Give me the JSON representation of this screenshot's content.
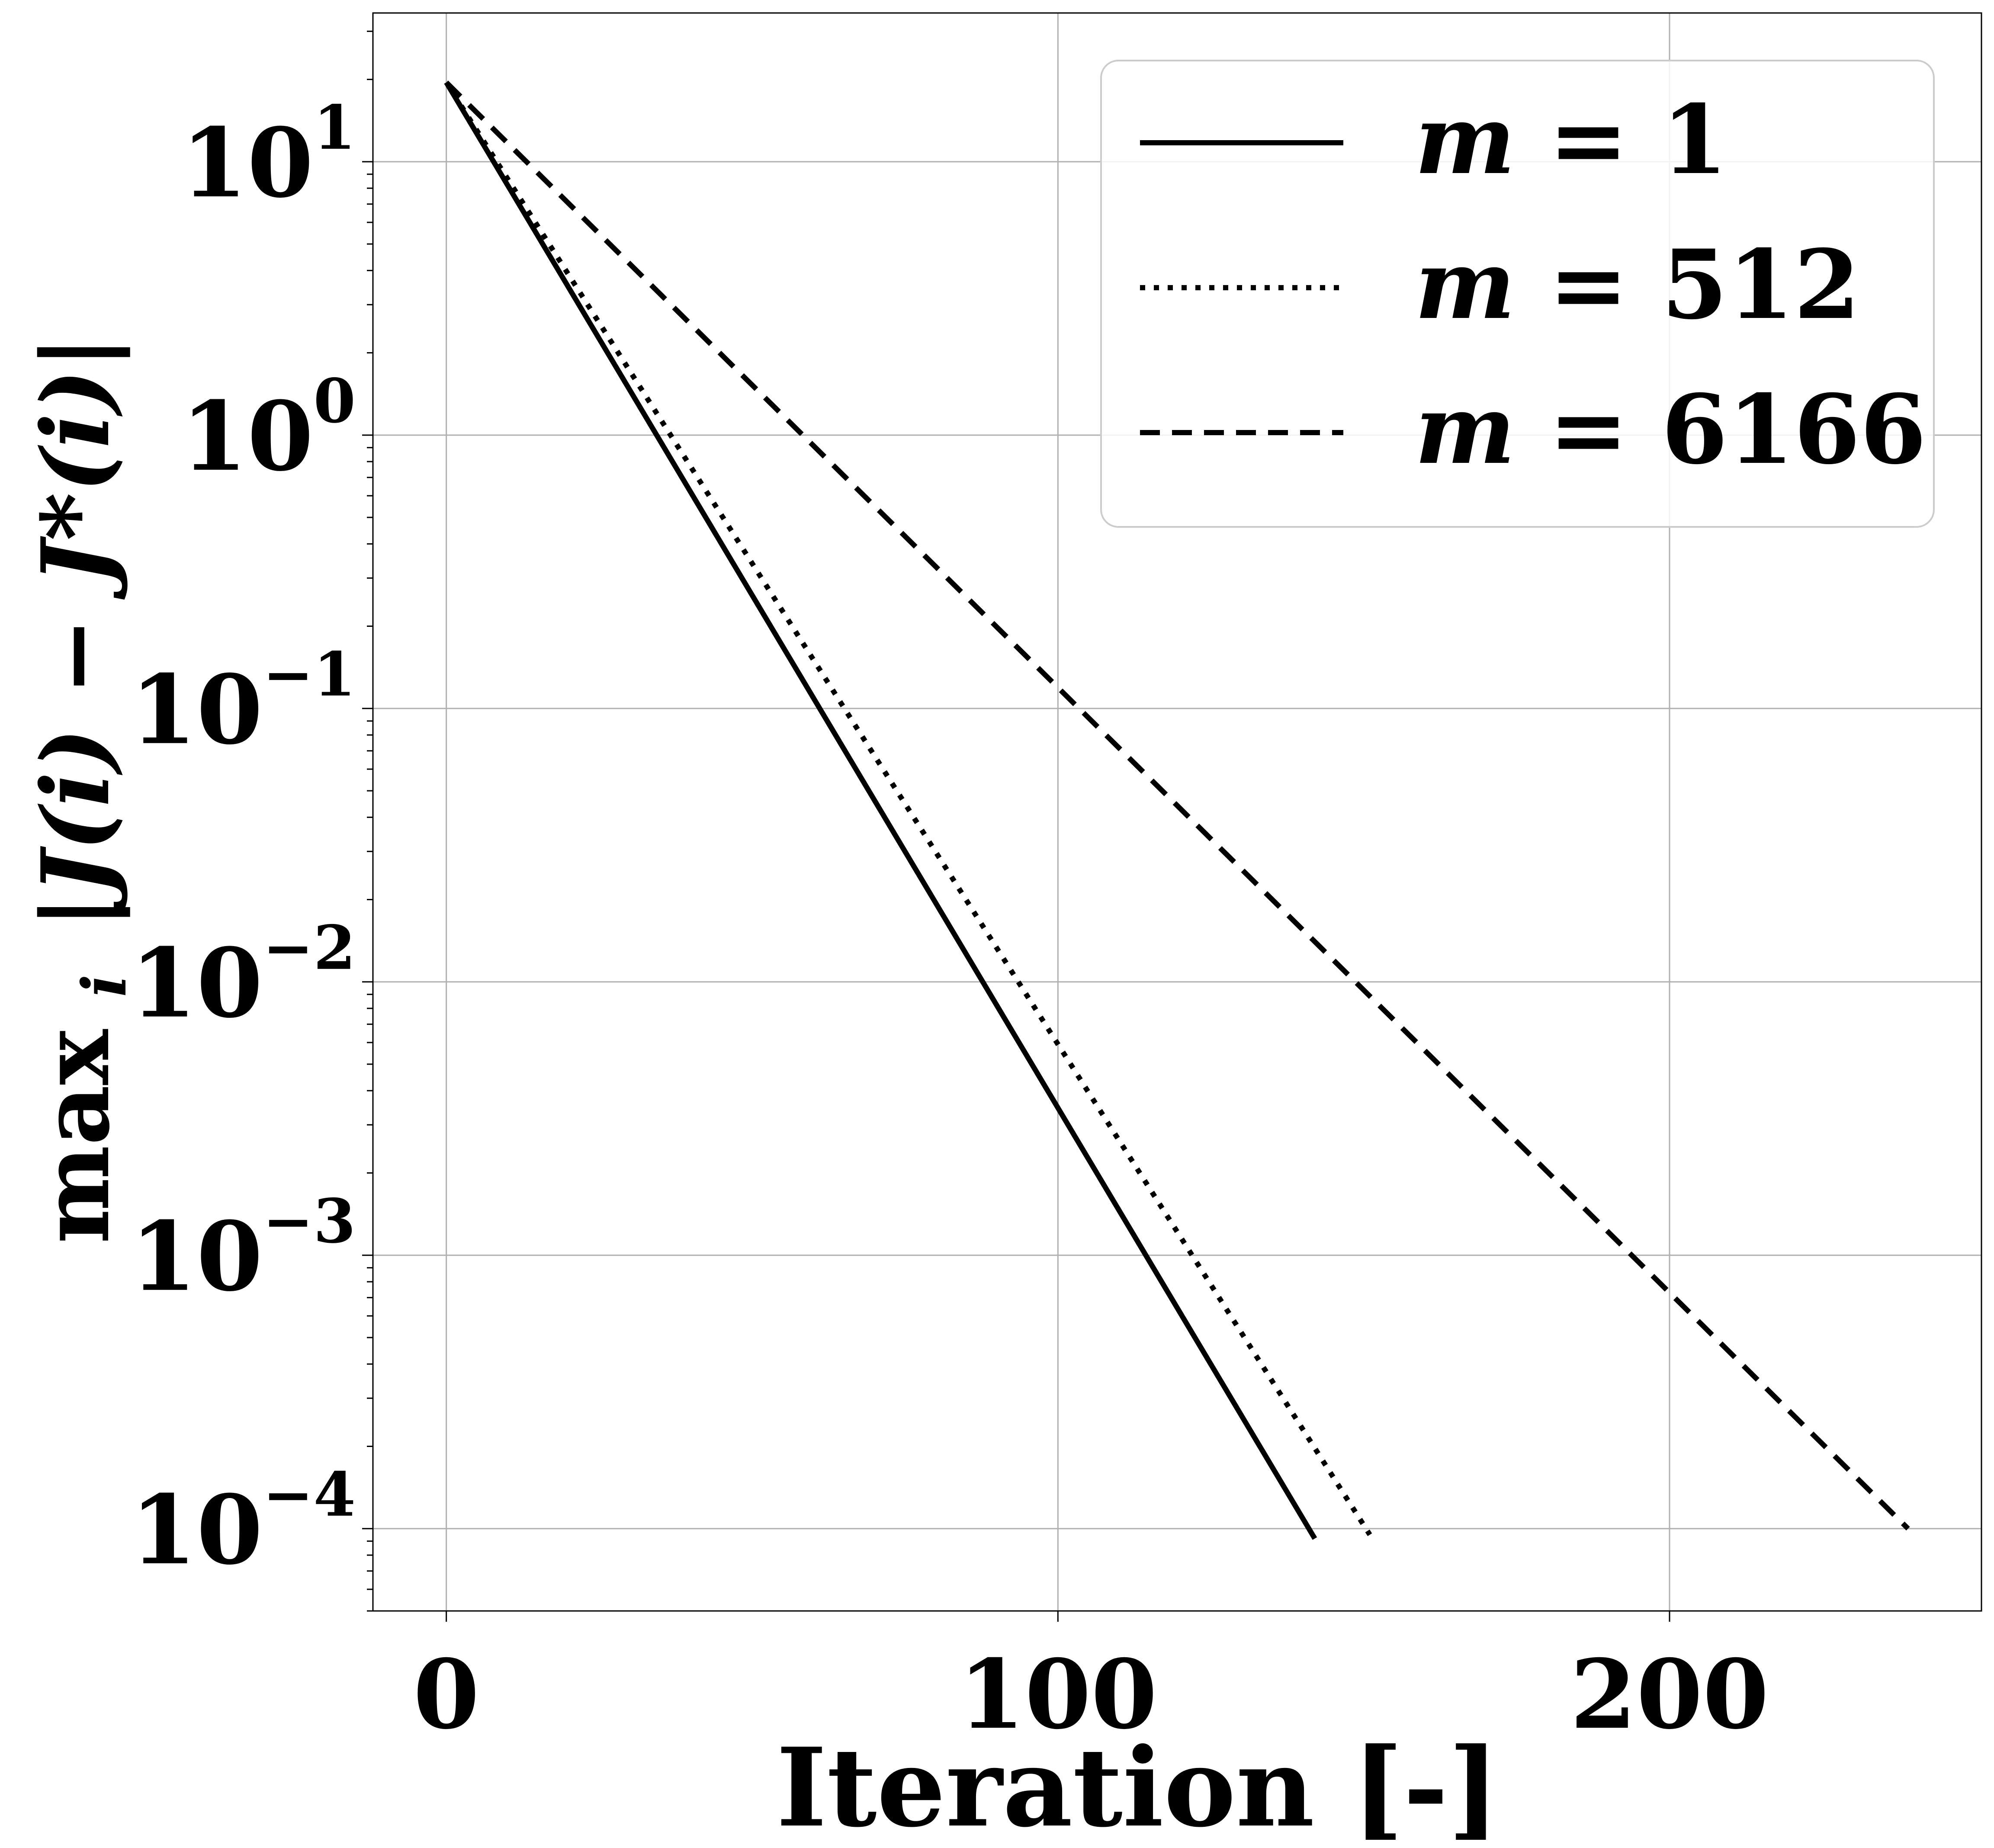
{
  "chart_data": {
    "type": "line",
    "title": "",
    "xlabel": "Iteration [-]",
    "ylabel": {
      "prefix": "max",
      "subscript": "i",
      "expression": "|J(i) − J*(i)|"
    },
    "x_scale": "linear",
    "y_scale": "log",
    "xlim": [
      -12,
      251
    ],
    "ylim": [
      5e-05,
      35
    ],
    "x_ticks": [
      {
        "value": 0,
        "label": "0"
      },
      {
        "value": 100,
        "label": "100"
      },
      {
        "value": 200,
        "label": "200"
      }
    ],
    "y_ticks": [
      {
        "value": 10,
        "base": "10",
        "exp": "1"
      },
      {
        "value": 1,
        "base": "10",
        "exp": "0"
      },
      {
        "value": 0.1,
        "base": "10",
        "exp": "−1"
      },
      {
        "value": 0.01,
        "base": "10",
        "exp": "−2"
      },
      {
        "value": 0.001,
        "base": "10",
        "exp": "−3"
      },
      {
        "value": 0.0001,
        "base": "10",
        "exp": "−4"
      }
    ],
    "grid": true,
    "legend": {
      "placement": "top-right"
    },
    "series": [
      {
        "name_var": "m",
        "name_eq": " = ",
        "name_val": "1",
        "style": "solid",
        "x": [
          0,
          142
        ],
        "y": [
          19.5,
          9.2e-05
        ]
      },
      {
        "name_var": "m",
        "name_eq": " = ",
        "name_val": "512",
        "style": "dotted",
        "x": [
          0,
          151
        ],
        "y": [
          19.5,
          9.5e-05
        ]
      },
      {
        "name_var": "m",
        "name_eq": " = ",
        "name_val": "6166",
        "style": "dashed",
        "x": [
          0,
          239
        ],
        "y": [
          19.5,
          0.0001
        ]
      }
    ]
  }
}
